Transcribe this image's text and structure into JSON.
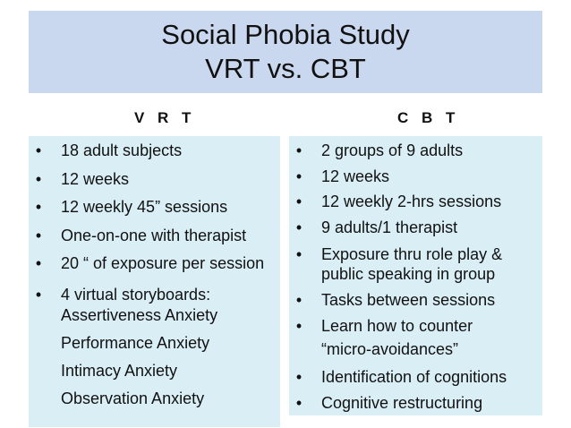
{
  "title": {
    "line1": "Social Phobia Study",
    "line2": "VRT vs. CBT"
  },
  "left": {
    "header": "V R T",
    "items": [
      "18 adult subjects",
      "12 weeks",
      "12  weekly 45” sessions",
      "One-on-one with therapist",
      "20 “ of exposure per session",
      "4 virtual storyboards:"
    ],
    "subitems": [
      "Assertiveness Anxiety",
      "Performance Anxiety",
      "Intimacy Anxiety",
      "Observation Anxiety"
    ]
  },
  "right": {
    "header": "C B T",
    "items": [
      "2 groups of 9 adults",
      "12 weeks",
      "12   weekly 2-hrs sessions",
      "9 adults/1 therapist",
      "Exposure thru role play &",
      "public speaking in group",
      "Tasks between sessions",
      "Learn how to counter",
      "“micro-avoidances”",
      "Identification of cognitions",
      "Cognitive restructuring"
    ]
  },
  "bullet": "•"
}
